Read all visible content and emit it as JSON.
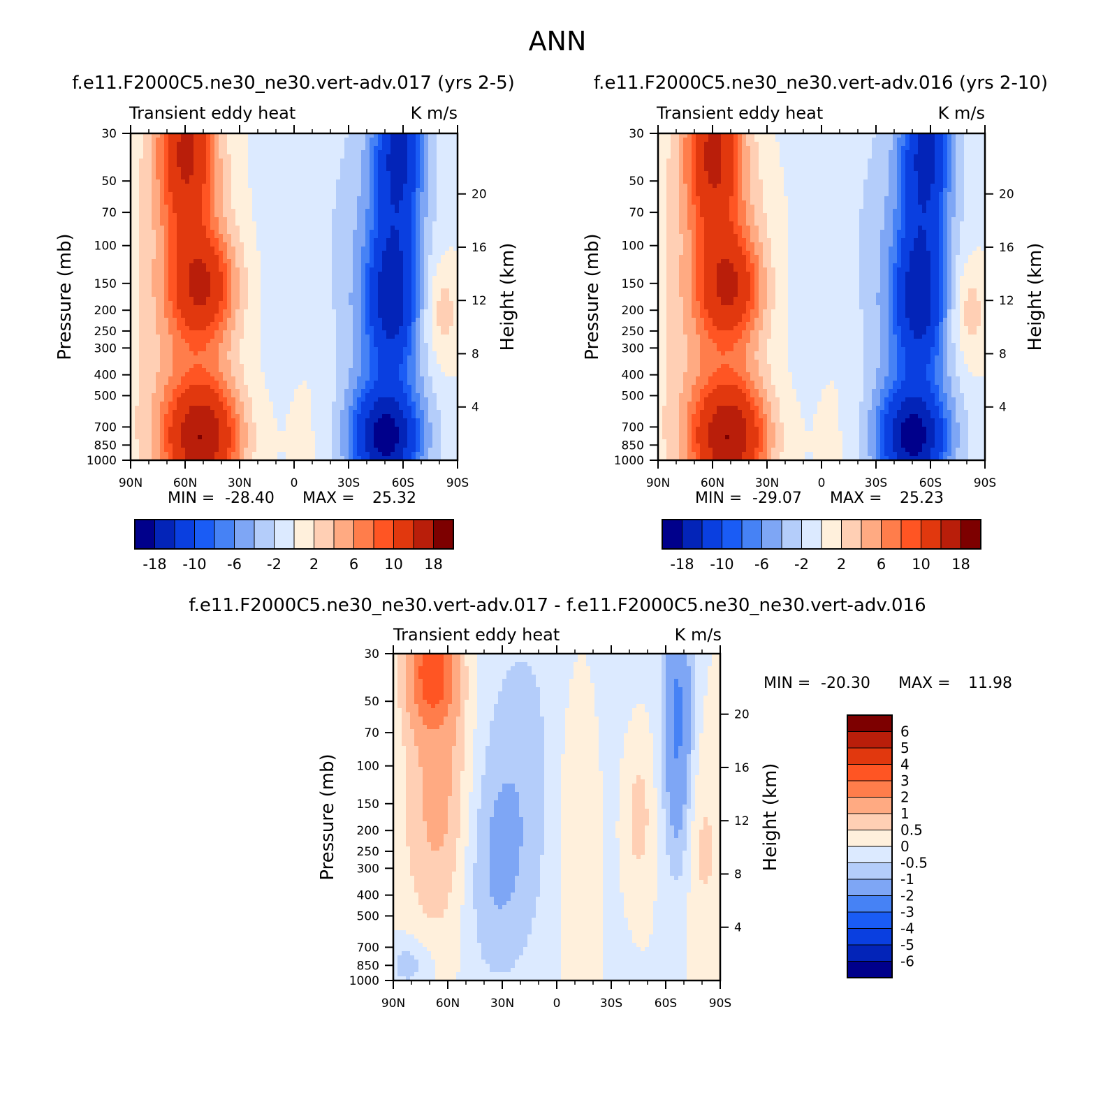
{
  "figure": {
    "title": "ANN"
  },
  "colormaps": {
    "full": [
      "#00008b",
      "#0324b8",
      "#0a3fe0",
      "#1a5cf5",
      "#4682f5",
      "#7ea6f5",
      "#b4cdfa",
      "#dceaff",
      "#fff0dc",
      "#ffcfb4",
      "#ffaa82",
      "#ff7d4b",
      "#ff5523",
      "#e1380e",
      "#b91e0a",
      "#7d0000"
    ],
    "diff": [
      "#00008b",
      "#0324b8",
      "#0a3fe0",
      "#1a5cf5",
      "#4682f5",
      "#7ea6f5",
      "#b4cdfa",
      "#dceaff",
      "#fff0dc",
      "#ffcfb4",
      "#ffaa82",
      "#ff7d4b",
      "#ff5523",
      "#e1380e",
      "#b91e0a",
      "#7d0000"
    ]
  },
  "chart_data": [
    {
      "type": "heatmap",
      "title": "f.e11.F2000C5.ne30_ne30.vert-adv.017 (yrs 2-5)",
      "left_string": "Transient eddy heat",
      "right_string": "K m/s",
      "ylabel": "Pressure (mb)",
      "y2label": "Height (km)",
      "x_ticks": [
        "90N",
        "60N",
        "30N",
        "0",
        "30S",
        "60S",
        "90S"
      ],
      "y_ticks": [
        "30",
        "50",
        "70",
        "100",
        "150",
        "200",
        "250",
        "300",
        "400",
        "500",
        "700",
        "850",
        "1000"
      ],
      "y2_ticks": [
        "20",
        "16",
        "12",
        "8",
        "4"
      ],
      "min_label": "MIN =",
      "min_value": "-28.40",
      "max_label": "MAX =",
      "max_value": "25.32",
      "colorbar_labels": [
        "-18",
        "-10",
        "-6",
        "-2",
        "2",
        "6",
        "10",
        "18"
      ],
      "levels": [
        -18,
        -14,
        -10,
        -8,
        -6,
        -4,
        -2,
        0,
        2,
        4,
        6,
        8,
        10,
        14,
        18
      ]
    },
    {
      "type": "heatmap",
      "title": "f.e11.F2000C5.ne30_ne30.vert-adv.016 (yrs 2-10)",
      "left_string": "Transient eddy heat",
      "right_string": "K m/s",
      "ylabel": "Pressure (mb)",
      "y2label": "Height (km)",
      "x_ticks": [
        "90N",
        "60N",
        "30N",
        "0",
        "30S",
        "60S",
        "90S"
      ],
      "y_ticks": [
        "30",
        "50",
        "70",
        "100",
        "150",
        "200",
        "250",
        "300",
        "400",
        "500",
        "700",
        "850",
        "1000"
      ],
      "y2_ticks": [
        "20",
        "16",
        "12",
        "8",
        "4"
      ],
      "min_label": "MIN =",
      "min_value": "-29.07",
      "max_label": "MAX =",
      "max_value": "25.23",
      "colorbar_labels": [
        "-18",
        "-10",
        "-6",
        "-2",
        "2",
        "6",
        "10",
        "18"
      ],
      "levels": [
        -18,
        -14,
        -10,
        -8,
        -6,
        -4,
        -2,
        0,
        2,
        4,
        6,
        8,
        10,
        14,
        18
      ]
    },
    {
      "type": "heatmap",
      "title": "f.e11.F2000C5.ne30_ne30.vert-adv.017 - f.e11.F2000C5.ne30_ne30.vert-adv.016",
      "left_string": "Transient eddy heat",
      "right_string": "K m/s",
      "ylabel": "Pressure (mb)",
      "y2label": "Height (km)",
      "x_ticks": [
        "90N",
        "60N",
        "30N",
        "0",
        "30S",
        "60S",
        "90S"
      ],
      "y_ticks": [
        "30",
        "50",
        "70",
        "100",
        "150",
        "200",
        "250",
        "300",
        "400",
        "500",
        "700",
        "850",
        "1000"
      ],
      "y2_ticks": [
        "20",
        "16",
        "12",
        "8",
        "4"
      ],
      "min_label": "MIN =",
      "min_value": "-20.30",
      "max_label": "MAX =",
      "max_value": "11.98",
      "colorbar_labels": [
        "6",
        "5",
        "4",
        "3",
        "2",
        "1",
        "0.5",
        "0",
        "-0.5",
        "-1",
        "-2",
        "-3",
        "-4",
        "-5",
        "-6"
      ],
      "levels": [
        -6,
        -5,
        -4,
        -3,
        -2,
        -1,
        -0.5,
        0,
        0.5,
        1,
        2,
        3,
        4,
        5,
        6
      ]
    }
  ]
}
